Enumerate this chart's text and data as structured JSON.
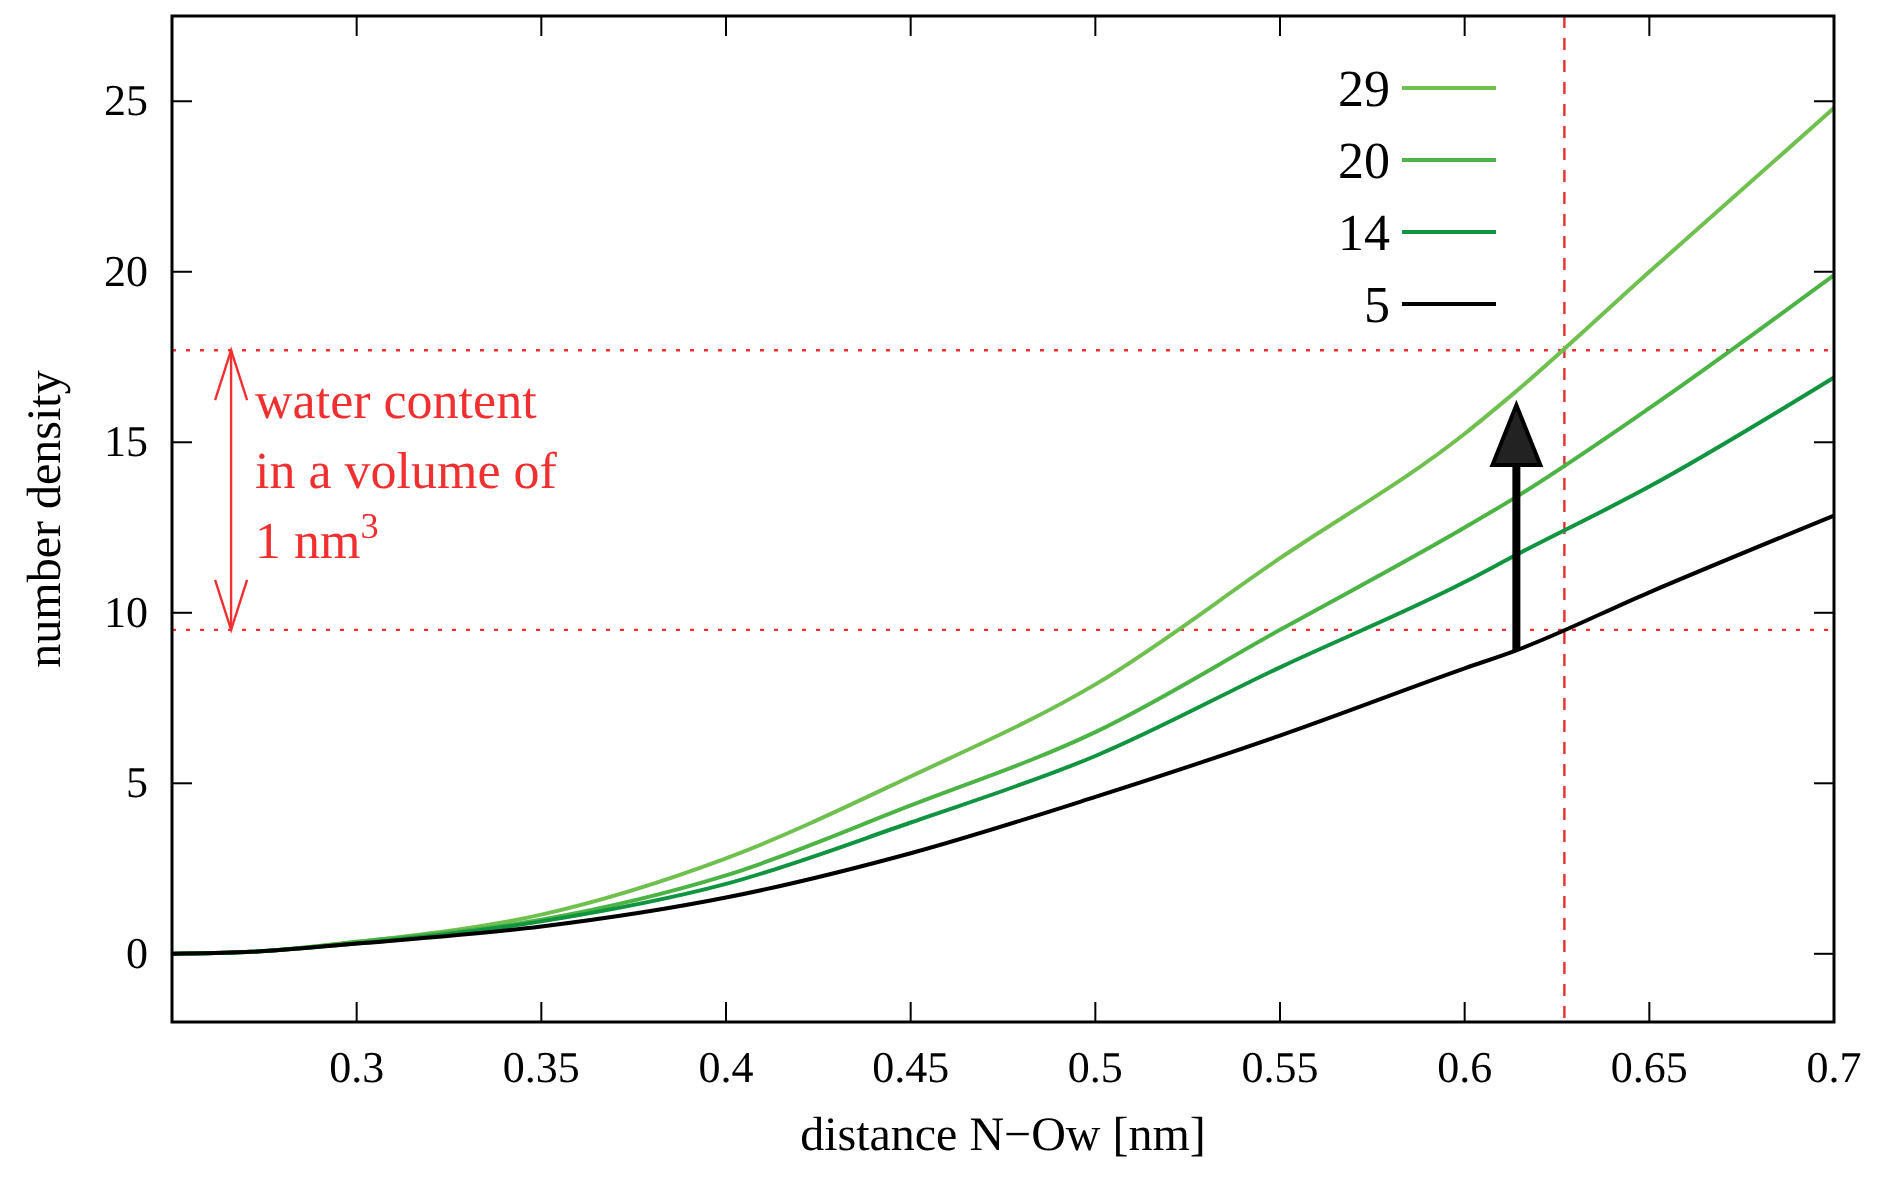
{
  "chart_data": {
    "type": "line",
    "xlabel": "distance N−Ow [nm]",
    "ylabel": "number density",
    "x": [
      0.25,
      0.27,
      0.3,
      0.35,
      0.4,
      0.45,
      0.5,
      0.55,
      0.6,
      0.614,
      0.65,
      0.7
    ],
    "series": [
      {
        "name": "29",
        "color": "#70c050",
        "values": [
          0,
          0.05,
          0.35,
          1.15,
          2.8,
          5.2,
          7.9,
          11.6,
          15.25,
          16.5,
          20.0,
          24.8
        ]
      },
      {
        "name": "20",
        "color": "#4cb444",
        "values": [
          0,
          0.05,
          0.35,
          1.0,
          2.3,
          4.35,
          6.5,
          9.5,
          12.5,
          13.4,
          16.0,
          19.9
        ]
      },
      {
        "name": "14",
        "color": "#109440",
        "values": [
          0,
          0.05,
          0.3,
          0.95,
          2.05,
          3.85,
          5.8,
          8.4,
          10.9,
          11.7,
          13.7,
          16.9
        ]
      },
      {
        "name": "5",
        "color": "#000000",
        "values": [
          0,
          0.05,
          0.3,
          0.8,
          1.65,
          2.95,
          4.6,
          6.4,
          8.37,
          8.9,
          10.6,
          12.85
        ]
      }
    ],
    "xlim": [
      0.25,
      0.7
    ],
    "xticks": [
      0.3,
      0.35,
      0.4,
      0.45,
      0.5,
      0.55,
      0.6,
      0.65,
      0.7
    ],
    "ylim": [
      -2,
      27.5
    ],
    "yticks": [
      0,
      5,
      10,
      15,
      20,
      25
    ],
    "ref_lines": [
      {
        "axis": "y",
        "value": 17.7,
        "color": "#f03030",
        "line_style": "dotted"
      },
      {
        "axis": "y",
        "value": 9.5,
        "color": "#f03030",
        "line_style": "dotted"
      },
      {
        "axis": "x",
        "value": 0.627,
        "color": "#e03030",
        "line_style": "dashed"
      }
    ],
    "annotations": [
      {
        "text": "water content\nin a volume of\n1 nm$^{3}$",
        "x": 0.266,
        "y": 17.7
      }
    ],
    "legend": "top right",
    "grid": false,
    "line_style": "solid"
  }
}
